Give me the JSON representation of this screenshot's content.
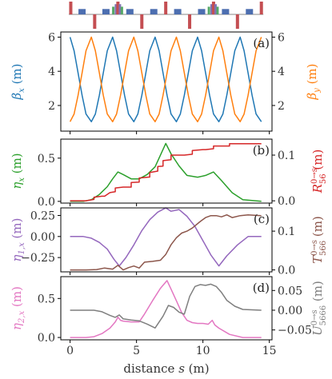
{
  "colors": {
    "blue": "#1f77b4",
    "orange": "#ff7f0e",
    "green": "#2ca02c",
    "red": "#d62728",
    "purple": "#9467bd",
    "brown": "#8c564b",
    "pink": "#e377c2",
    "gray": "#7f7f7f",
    "lattice_dipole": "#4c6eb0",
    "lattice_quad": "#c44e52",
    "lattice_sext": "#55a868",
    "lattice_oct": "#8172b2"
  },
  "chart_data": [
    {
      "type": "line",
      "panel_label": "(a)",
      "xlim": [
        -0.7,
        15.2
      ],
      "x_ticks": [
        0,
        5,
        10,
        15
      ],
      "ylabel_left": "βx (m)",
      "ylabel_right": "βy (m)",
      "ylim_left": [
        0.5,
        6.3
      ],
      "ylim_right": [
        0.5,
        6.3
      ],
      "y_ticks_left": [
        "2",
        "4",
        "6"
      ],
      "y_ticks_right": [
        "2",
        "4",
        "6"
      ],
      "series": [
        {
          "axis": "left",
          "color_key": "blue",
          "x": [
            0,
            0.3,
            0.6,
            0.9,
            1.2,
            1.6,
            1.9,
            2.2,
            2.5,
            2.8,
            3.2,
            3.5,
            3.8,
            4.1,
            4.4,
            4.8,
            5.1,
            5.4,
            5.7,
            6.0,
            6.4,
            6.7,
            7.0,
            7.3,
            7.6,
            8.0,
            8.3,
            8.6,
            8.9,
            9.2,
            9.6,
            9.9,
            10.2,
            10.5,
            10.8,
            11.2,
            11.5,
            11.8,
            12.1,
            12.4,
            12.8,
            13.1,
            13.4,
            13.7,
            14.0,
            14.4
          ],
          "y": [
            6.0,
            5.2,
            3.9,
            2.6,
            1.5,
            1.05,
            1.5,
            2.6,
            3.9,
            5.2,
            6.0,
            5.2,
            3.9,
            2.6,
            1.5,
            1.05,
            1.5,
            2.6,
            3.9,
            5.2,
            6.0,
            5.2,
            3.9,
            2.6,
            1.5,
            1.05,
            1.5,
            2.6,
            3.9,
            5.2,
            6.0,
            5.2,
            3.9,
            2.6,
            1.5,
            1.05,
            1.5,
            2.6,
            3.9,
            5.2,
            6.0,
            5.2,
            3.9,
            2.6,
            1.5,
            1.05
          ]
        },
        {
          "axis": "right",
          "color_key": "orange",
          "x": [
            0,
            0.3,
            0.6,
            0.9,
            1.2,
            1.6,
            1.9,
            2.2,
            2.5,
            2.8,
            3.2,
            3.5,
            3.8,
            4.1,
            4.4,
            4.8,
            5.1,
            5.4,
            5.7,
            6.0,
            6.4,
            6.7,
            7.0,
            7.3,
            7.6,
            8.0,
            8.3,
            8.6,
            8.9,
            9.2,
            9.6,
            9.9,
            10.2,
            10.5,
            10.8,
            11.2,
            11.5,
            11.8,
            12.1,
            12.4,
            12.8,
            13.1,
            13.4,
            13.7,
            14.0,
            14.4
          ],
          "y": [
            1.05,
            1.5,
            2.6,
            3.9,
            5.2,
            6.0,
            5.2,
            3.9,
            2.6,
            1.5,
            1.05,
            1.5,
            2.6,
            3.9,
            5.2,
            6.0,
            5.2,
            3.9,
            2.6,
            1.5,
            1.05,
            1.5,
            2.6,
            3.9,
            5.2,
            6.0,
            5.2,
            3.9,
            2.6,
            1.5,
            1.05,
            1.5,
            2.6,
            3.9,
            5.2,
            6.0,
            5.2,
            3.9,
            2.6,
            1.5,
            1.05,
            1.5,
            2.6,
            3.9,
            5.2,
            6.0
          ]
        }
      ]
    },
    {
      "type": "line",
      "panel_label": "(b)",
      "xlim": [
        -0.7,
        15.2
      ],
      "ylabel_left": "ηx (m)",
      "ylabel_right": "R56^(0→s) (m)",
      "ylim_left": [
        -0.02,
        0.72
      ],
      "ylim_right": [
        -0.005,
        0.135
      ],
      "y_ticks_left": [
        "0.0",
        "0.5"
      ],
      "y_ticks_right": [
        "0.0",
        "0.1"
      ],
      "series": [
        {
          "axis": "left",
          "color_key": "green",
          "x": [
            0,
            1.0,
            1.6,
            2.2,
            2.8,
            3.2,
            3.6,
            4.0,
            4.6,
            5.2,
            5.8,
            6.4,
            7.2,
            7.6,
            8.2,
            8.8,
            9.6,
            10.2,
            10.8,
            11.4,
            12.2,
            13.0,
            14.4
          ],
          "y": [
            0,
            0,
            0.02,
            0.08,
            0.17,
            0.26,
            0.34,
            0.31,
            0.26,
            0.26,
            0.31,
            0.4,
            0.67,
            0.55,
            0.41,
            0.3,
            0.28,
            0.3,
            0.34,
            0.24,
            0.1,
            0.02,
            0
          ]
        },
        {
          "axis": "right",
          "color_key": "red",
          "x": [
            0,
            1.2,
            1.8,
            1.8,
            2.4,
            2.6,
            3.0,
            3.4,
            3.4,
            4.0,
            4.6,
            4.6,
            5.2,
            5.2,
            6.0,
            6.0,
            6.6,
            6.6,
            7.0,
            7.0,
            7.6,
            7.6,
            8.4,
            8.6,
            9.2,
            9.2,
            10.0,
            10.2,
            10.8,
            10.8,
            12.0,
            12.0,
            14.4
          ],
          "y": [
            0,
            0,
            0.003,
            0.008,
            0.01,
            0.01,
            0.018,
            0.02,
            0.028,
            0.03,
            0.03,
            0.04,
            0.041,
            0.05,
            0.052,
            0.062,
            0.065,
            0.075,
            0.076,
            0.088,
            0.09,
            0.1,
            0.1,
            0.1,
            0.102,
            0.11,
            0.112,
            0.112,
            0.114,
            0.12,
            0.12,
            0.125,
            0.125
          ]
        }
      ]
    },
    {
      "type": "line",
      "panel_label": "(c)",
      "xlim": [
        -0.7,
        15.2
      ],
      "ylabel_left": "η1,x (m)",
      "ylabel_right": "T566^(0→s) (m)",
      "ylim_left": [
        -0.42,
        0.34
      ],
      "ylim_right": [
        -0.005,
        0.16
      ],
      "y_ticks_left": [
        "−0.25",
        "0.00",
        "0.25"
      ],
      "y_ticks_right": [
        "0.0",
        "0.1"
      ],
      "series": [
        {
          "axis": "left",
          "color_key": "purple",
          "x": [
            0,
            1.0,
            1.6,
            2.2,
            2.8,
            3.3,
            3.7,
            4.2,
            4.8,
            5.4,
            6.0,
            6.6,
            7.2,
            7.6,
            8.2,
            8.8,
            9.4,
            10.0,
            10.6,
            11.2,
            11.8,
            12.6,
            13.4,
            14.4
          ],
          "y": [
            0,
            0,
            -0.02,
            -0.07,
            -0.15,
            -0.27,
            -0.35,
            -0.25,
            -0.1,
            0.07,
            0.2,
            0.29,
            0.34,
            0.3,
            0.32,
            0.24,
            0.12,
            -0.05,
            -0.22,
            -0.35,
            -0.23,
            -0.1,
            0,
            0
          ]
        },
        {
          "axis": "right",
          "color_key": "brown",
          "x": [
            0,
            1.2,
            2.0,
            2.6,
            3.2,
            3.6,
            4.0,
            4.4,
            4.8,
            5.2,
            5.6,
            6.2,
            6.8,
            7.2,
            7.6,
            8.0,
            8.4,
            8.8,
            9.2,
            9.8,
            10.2,
            10.6,
            11.0,
            11.4,
            11.8,
            12.2,
            12.8,
            13.4,
            14.4
          ],
          "y": [
            0,
            0,
            0.001,
            0.005,
            0.002,
            0.012,
            0.0,
            0.006,
            0.01,
            0.005,
            0.02,
            0.022,
            0.025,
            0.04,
            0.065,
            0.083,
            0.095,
            0.1,
            0.108,
            0.125,
            0.135,
            0.14,
            0.14,
            0.137,
            0.142,
            0.135,
            0.14,
            0.142,
            0.14
          ]
        }
      ]
    },
    {
      "type": "line",
      "panel_label": "(d)",
      "xlim": [
        -0.7,
        15.2
      ],
      "xlabel": "distance s (m)",
      "x_ticks": [
        0,
        5,
        10,
        15
      ],
      "ylabel_left": "η2,x (m)",
      "ylabel_right": "U5666^(0→s) (m)",
      "ylim_left": [
        -0.03,
        0.78
      ],
      "ylim_right": [
        -0.075,
        0.085
      ],
      "y_ticks_left": [
        "0.0",
        "0.5"
      ],
      "y_ticks_right": [
        "−0.05",
        "0.00",
        "0.05"
      ],
      "series": [
        {
          "axis": "left",
          "color_key": "pink",
          "x": [
            0,
            1.2,
            1.8,
            2.4,
            3.0,
            3.4,
            3.6,
            3.8,
            4.0,
            4.6,
            5.2,
            5.6,
            6.2,
            6.8,
            7.3,
            7.6,
            8.0,
            8.4,
            8.8,
            9.2,
            9.6,
            10.0,
            10.4,
            10.7,
            10.9,
            11.2,
            12.0,
            13.0,
            14.4
          ],
          "y": [
            0,
            0,
            0.01,
            0.05,
            0.12,
            0.2,
            0.26,
            0.22,
            0.21,
            0.2,
            0.2,
            0.3,
            0.47,
            0.63,
            0.73,
            0.62,
            0.47,
            0.32,
            0.22,
            0.19,
            0.18,
            0.18,
            0.17,
            0.22,
            0.16,
            0.12,
            0.04,
            0,
            0
          ]
        },
        {
          "axis": "right",
          "color_key": "gray",
          "x": [
            0,
            1.2,
            1.8,
            2.4,
            3.0,
            3.4,
            3.7,
            4.0,
            4.6,
            5.2,
            5.8,
            6.4,
            7.0,
            7.4,
            7.8,
            8.2,
            8.6,
            9.0,
            9.4,
            9.8,
            10.2,
            10.6,
            11.0,
            11.4,
            11.8,
            12.4,
            13.0,
            14.4
          ],
          "y": [
            0,
            0,
            0,
            -0.004,
            -0.013,
            -0.018,
            -0.012,
            -0.022,
            -0.025,
            -0.027,
            -0.035,
            -0.045,
            -0.015,
            0.012,
            0.007,
            -0.005,
            -0.01,
            0.035,
            0.06,
            0.065,
            0.063,
            0.066,
            0.06,
            0.045,
            0.025,
            0.01,
            0.002,
            0
          ]
        }
      ]
    }
  ],
  "lattice": {
    "elements": [
      {
        "s": 0.05,
        "type": "quad",
        "side": "up",
        "h": 1.0
      },
      {
        "s": 0.9,
        "type": "dipole",
        "side": "up",
        "h": 0.42
      },
      {
        "s": 1.85,
        "type": "quad",
        "side": "down",
        "h": 1.0
      },
      {
        "s": 2.7,
        "type": "dipole",
        "side": "up",
        "h": 0.42
      },
      {
        "s": 3.25,
        "type": "sext",
        "side": "up",
        "h": 0.6
      },
      {
        "s": 3.45,
        "type": "oct",
        "side": "up",
        "h": 0.8
      },
      {
        "s": 3.6,
        "type": "quad",
        "side": "up",
        "h": 1.0
      },
      {
        "s": 3.75,
        "type": "oct",
        "side": "up",
        "h": 0.8
      },
      {
        "s": 3.9,
        "type": "sext",
        "side": "up",
        "h": 0.6
      },
      {
        "s": 4.5,
        "type": "dipole",
        "side": "up",
        "h": 0.42
      },
      {
        "s": 5.4,
        "type": "quad",
        "side": "down",
        "h": 1.0
      },
      {
        "s": 6.3,
        "type": "dipole",
        "side": "up",
        "h": 0.42
      },
      {
        "s": 7.2,
        "type": "quad",
        "side": "up",
        "h": 1.0
      },
      {
        "s": 8.1,
        "type": "dipole",
        "side": "up",
        "h": 0.42
      },
      {
        "s": 9.0,
        "type": "quad",
        "side": "down",
        "h": 1.0
      },
      {
        "s": 9.9,
        "type": "dipole",
        "side": "up",
        "h": 0.42
      },
      {
        "s": 10.45,
        "type": "sext",
        "side": "up",
        "h": 0.6
      },
      {
        "s": 10.65,
        "type": "oct",
        "side": "up",
        "h": 0.8
      },
      {
        "s": 10.8,
        "type": "quad",
        "side": "up",
        "h": 1.0
      },
      {
        "s": 10.95,
        "type": "oct",
        "side": "up",
        "h": 0.8
      },
      {
        "s": 11.1,
        "type": "sext",
        "side": "up",
        "h": 0.6
      },
      {
        "s": 11.7,
        "type": "dipole",
        "side": "up",
        "h": 0.42
      },
      {
        "s": 12.6,
        "type": "quad",
        "side": "down",
        "h": 1.0
      },
      {
        "s": 13.5,
        "type": "dipole",
        "side": "up",
        "h": 0.42
      },
      {
        "s": 14.4,
        "type": "quad",
        "side": "up",
        "h": 1.0
      }
    ]
  }
}
